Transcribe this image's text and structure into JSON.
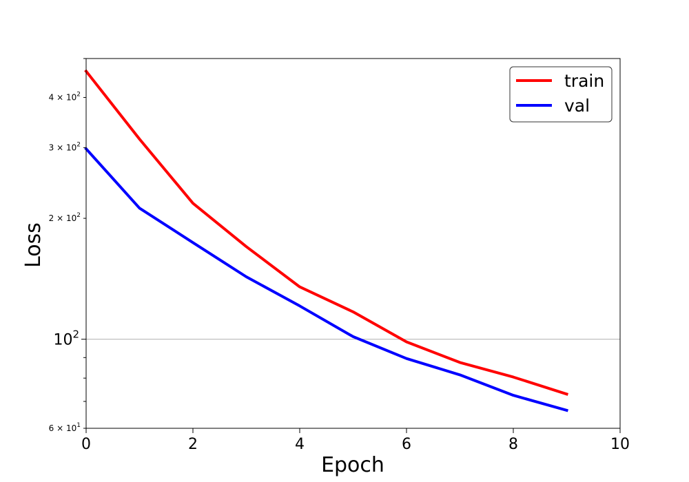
{
  "chart_data": {
    "type": "line",
    "title": "",
    "xlabel": "Epoch",
    "ylabel": "Loss",
    "xlim": [
      0,
      10
    ],
    "ylim": [
      60,
      500
    ],
    "yscale": "log",
    "x_ticks": [
      0,
      2,
      4,
      6,
      8,
      10
    ],
    "y_major_ticks": [
      100
    ],
    "y_minor_labeled_ticks": [
      60,
      200,
      300,
      400
    ],
    "y_unlabeled_minor_ticks": [
      70,
      80,
      90,
      500
    ],
    "grid": "horizontal line at 100 only",
    "legend_position": "top-right",
    "series": [
      {
        "name": "train",
        "color": "#ff0000",
        "x": [
          0,
          1,
          2,
          3,
          4,
          5,
          6,
          7,
          8,
          9
        ],
        "values": [
          465,
          315,
          218,
          170,
          135,
          117,
          98.5,
          87.5,
          80.5,
          73
        ]
      },
      {
        "name": "val",
        "color": "#0000ff",
        "x": [
          0,
          1,
          2,
          3,
          4,
          5,
          6,
          7,
          8,
          9
        ],
        "values": [
          298,
          212,
          174,
          143,
          121,
          101.5,
          89.5,
          81.5,
          72.5,
          66.5
        ]
      }
    ]
  },
  "labels": {
    "x_ticks": [
      "0",
      "2",
      "4",
      "6",
      "8",
      "10"
    ],
    "y_tick_100": {
      "base": "10",
      "exp": "2"
    },
    "y_tick_60": {
      "coef": "6 × 10",
      "exp": "1"
    },
    "y_tick_200": {
      "coef": "2 × 10",
      "exp": "2"
    },
    "y_tick_300": {
      "coef": "3 × 10",
      "exp": "2"
    },
    "y_tick_400": {
      "coef": "4 × 10",
      "exp": "2"
    }
  }
}
